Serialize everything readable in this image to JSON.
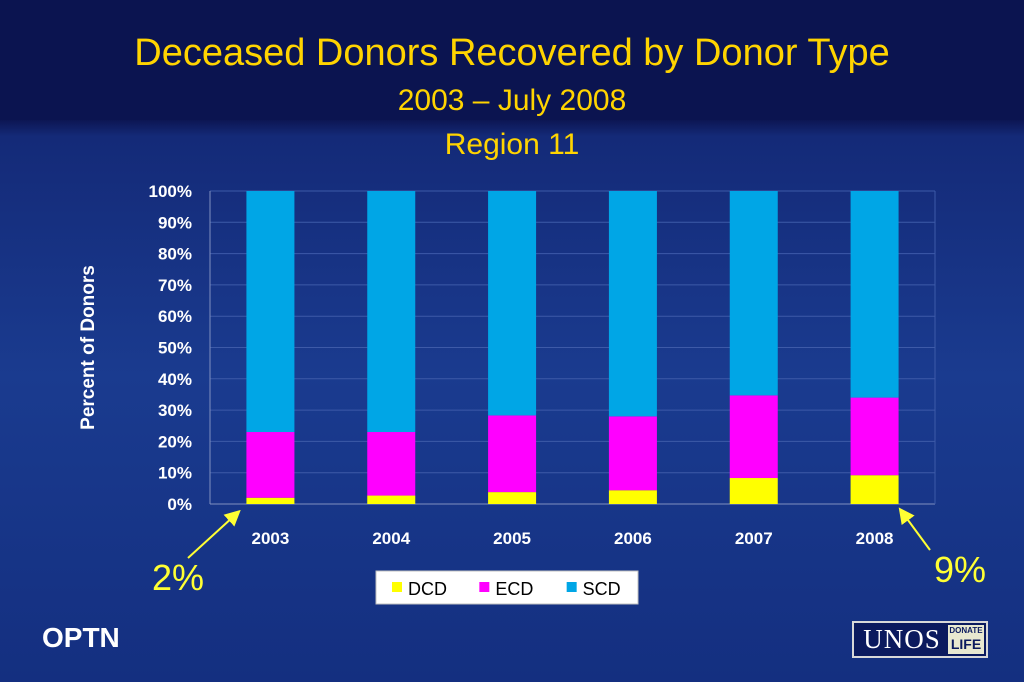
{
  "chart_data": {
    "type": "bar",
    "stacked": true,
    "title": "Deceased Donors Recovered by Donor Type",
    "subtitle": "2003 – July 2008",
    "subtitle2": "Region 11",
    "ylabel": "Percent of Donors",
    "xlabel": "",
    "ylim": [
      0,
      100
    ],
    "yticks": [
      "0%",
      "10%",
      "20%",
      "30%",
      "40%",
      "50%",
      "60%",
      "70%",
      "80%",
      "90%",
      "100%"
    ],
    "categories": [
      "2003",
      "2004",
      "2005",
      "2006",
      "2007",
      "2008"
    ],
    "series": [
      {
        "name": "DCD",
        "color": "#ffff00",
        "values": [
          2,
          2.7,
          3.8,
          4.4,
          8.3,
          9.2
        ]
      },
      {
        "name": "ECD",
        "color": "#ff00ff",
        "values": [
          21,
          20.3,
          24.5,
          23.6,
          26.4,
          24.8
        ]
      },
      {
        "name": "SCD",
        "color": "#00a6e6",
        "values": [
          77,
          77,
          71.7,
          72,
          65.3,
          66
        ]
      }
    ],
    "grid": true,
    "legend_position": "bottom",
    "annotations": [
      {
        "text": "2%",
        "category": "2003"
      },
      {
        "text": "9%",
        "category": "2008"
      }
    ]
  },
  "footer": {
    "left_label": "OPTN",
    "logo_name": "UNOS",
    "logo_badge_top": "DONATE",
    "logo_badge_bottom": "LIFE"
  },
  "colors": {
    "title": "#ffd400",
    "background": "#1a3b8f",
    "arrow": "#ffff33"
  }
}
